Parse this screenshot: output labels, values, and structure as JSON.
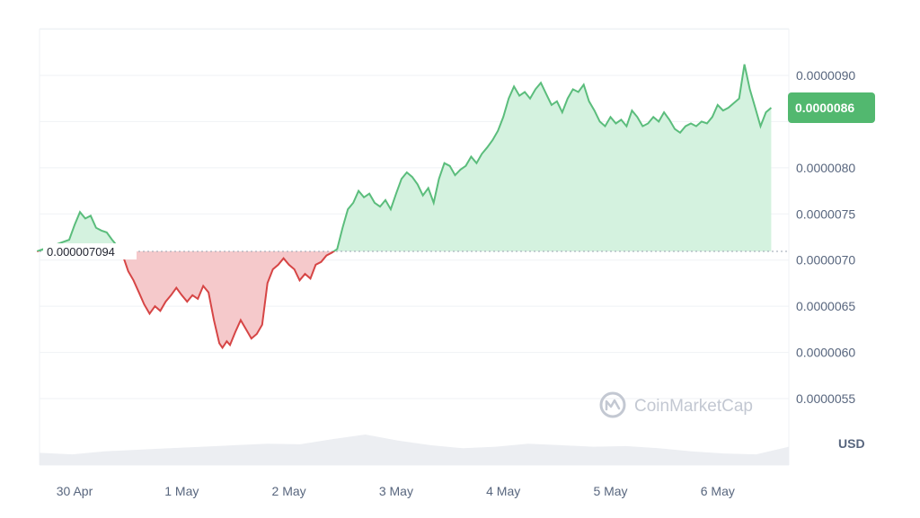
{
  "chart_data": {
    "type": "line",
    "title": "",
    "xlabel": "",
    "ylabel": "",
    "currency": "USD",
    "watermark": "CoinMarketCap",
    "x_ticks": [
      "30 Apr",
      "1 May",
      "2 May",
      "3 May",
      "4 May",
      "5 May",
      "6 May"
    ],
    "y_ticks": [
      "0.0000055",
      "0.0000060",
      "0.0000065",
      "0.0000070",
      "0.0000075",
      "0.0000080",
      "0.0000090"
    ],
    "ylim": [
      5.1e-06,
      9.5e-06
    ],
    "reference_price": 7.094e-06,
    "reference_label": "0.000007094",
    "current_price_label": "0.0000086",
    "colors": {
      "up_line": "#16c784",
      "up_line_drawn": "#5bbd7c",
      "down_line": "#d64545",
      "up_fill": "#d4f2df",
      "down_fill": "#f5c9cb",
      "badge": "#52b86f",
      "grid": "#eff2f5",
      "volume": "#eceef2"
    },
    "series": [
      {
        "x_unit": "days since 30 Apr 00:00",
        "points": [
          [
            -0.35,
            7.094
          ],
          [
            -0.05,
            7.22
          ],
          [
            0.0,
            7.38
          ],
          [
            0.05,
            7.52
          ],
          [
            0.1,
            7.45
          ],
          [
            0.15,
            7.48
          ],
          [
            0.2,
            7.35
          ],
          [
            0.25,
            7.32
          ],
          [
            0.3,
            7.3
          ],
          [
            0.35,
            7.22
          ],
          [
            0.4,
            7.15
          ],
          [
            0.45,
            7.05
          ],
          [
            0.5,
            6.88
          ],
          [
            0.55,
            6.78
          ],
          [
            0.6,
            6.65
          ],
          [
            0.65,
            6.52
          ],
          [
            0.7,
            6.42
          ],
          [
            0.75,
            6.5
          ],
          [
            0.8,
            6.45
          ],
          [
            0.85,
            6.55
          ],
          [
            0.9,
            6.62
          ],
          [
            0.95,
            6.7
          ],
          [
            1.0,
            6.62
          ],
          [
            1.05,
            6.55
          ],
          [
            1.1,
            6.62
          ],
          [
            1.15,
            6.58
          ],
          [
            1.2,
            6.72
          ],
          [
            1.25,
            6.65
          ],
          [
            1.3,
            6.35
          ],
          [
            1.35,
            6.1
          ],
          [
            1.38,
            6.05
          ],
          [
            1.42,
            6.12
          ],
          [
            1.45,
            6.08
          ],
          [
            1.5,
            6.22
          ],
          [
            1.55,
            6.35
          ],
          [
            1.6,
            6.25
          ],
          [
            1.65,
            6.15
          ],
          [
            1.7,
            6.2
          ],
          [
            1.75,
            6.3
          ],
          [
            1.8,
            6.75
          ],
          [
            1.85,
            6.9
          ],
          [
            1.9,
            6.95
          ],
          [
            1.95,
            7.02
          ],
          [
            2.0,
            6.95
          ],
          [
            2.05,
            6.9
          ],
          [
            2.1,
            6.78
          ],
          [
            2.15,
            6.85
          ],
          [
            2.2,
            6.8
          ],
          [
            2.25,
            6.95
          ],
          [
            2.3,
            6.98
          ],
          [
            2.35,
            7.05
          ],
          [
            2.4,
            7.08
          ],
          [
            2.45,
            7.12
          ],
          [
            2.5,
            7.35
          ],
          [
            2.55,
            7.55
          ],
          [
            2.6,
            7.62
          ],
          [
            2.65,
            7.75
          ],
          [
            2.7,
            7.68
          ],
          [
            2.75,
            7.72
          ],
          [
            2.8,
            7.62
          ],
          [
            2.85,
            7.58
          ],
          [
            2.9,
            7.65
          ],
          [
            2.95,
            7.55
          ],
          [
            3.0,
            7.72
          ],
          [
            3.05,
            7.88
          ],
          [
            3.1,
            7.95
          ],
          [
            3.15,
            7.9
          ],
          [
            3.2,
            7.82
          ],
          [
            3.25,
            7.7
          ],
          [
            3.3,
            7.78
          ],
          [
            3.35,
            7.62
          ],
          [
            3.4,
            7.88
          ],
          [
            3.45,
            8.05
          ],
          [
            3.5,
            8.02
          ],
          [
            3.55,
            7.92
          ],
          [
            3.6,
            7.98
          ],
          [
            3.65,
            8.02
          ],
          [
            3.7,
            8.12
          ],
          [
            3.75,
            8.05
          ],
          [
            3.8,
            8.15
          ],
          [
            3.85,
            8.22
          ],
          [
            3.9,
            8.3
          ],
          [
            3.95,
            8.4
          ],
          [
            4.0,
            8.55
          ],
          [
            4.05,
            8.75
          ],
          [
            4.1,
            8.88
          ],
          [
            4.15,
            8.78
          ],
          [
            4.2,
            8.82
          ],
          [
            4.25,
            8.75
          ],
          [
            4.3,
            8.85
          ],
          [
            4.35,
            8.92
          ],
          [
            4.4,
            8.8
          ],
          [
            4.45,
            8.68
          ],
          [
            4.5,
            8.72
          ],
          [
            4.55,
            8.6
          ],
          [
            4.6,
            8.75
          ],
          [
            4.65,
            8.85
          ],
          [
            4.7,
            8.82
          ],
          [
            4.75,
            8.9
          ],
          [
            4.8,
            8.72
          ],
          [
            4.85,
            8.62
          ],
          [
            4.9,
            8.5
          ],
          [
            4.95,
            8.45
          ],
          [
            5.0,
            8.55
          ],
          [
            5.05,
            8.48
          ],
          [
            5.1,
            8.52
          ],
          [
            5.15,
            8.45
          ],
          [
            5.2,
            8.62
          ],
          [
            5.25,
            8.55
          ],
          [
            5.3,
            8.45
          ],
          [
            5.35,
            8.48
          ],
          [
            5.4,
            8.55
          ],
          [
            5.45,
            8.5
          ],
          [
            5.5,
            8.6
          ],
          [
            5.55,
            8.52
          ],
          [
            5.6,
            8.42
          ],
          [
            5.65,
            8.38
          ],
          [
            5.7,
            8.45
          ],
          [
            5.75,
            8.48
          ],
          [
            5.8,
            8.45
          ],
          [
            5.85,
            8.5
          ],
          [
            5.9,
            8.48
          ],
          [
            5.95,
            8.55
          ],
          [
            6.0,
            8.68
          ],
          [
            6.05,
            8.62
          ],
          [
            6.1,
            8.65
          ],
          [
            6.15,
            8.7
          ],
          [
            6.2,
            8.75
          ],
          [
            6.25,
            9.12
          ],
          [
            6.3,
            8.85
          ],
          [
            6.35,
            8.65
          ],
          [
            6.4,
            8.45
          ],
          [
            6.45,
            8.6
          ],
          [
            6.5,
            8.65
          ]
        ]
      }
    ],
    "volume_profile": [
      0.4,
      0.35,
      0.45,
      0.5,
      0.55,
      0.6,
      0.65,
      0.7,
      0.68,
      0.85,
      1.0,
      0.8,
      0.65,
      0.55,
      0.6,
      0.7,
      0.65,
      0.6,
      0.62,
      0.55,
      0.45,
      0.38,
      0.35,
      0.6
    ]
  }
}
